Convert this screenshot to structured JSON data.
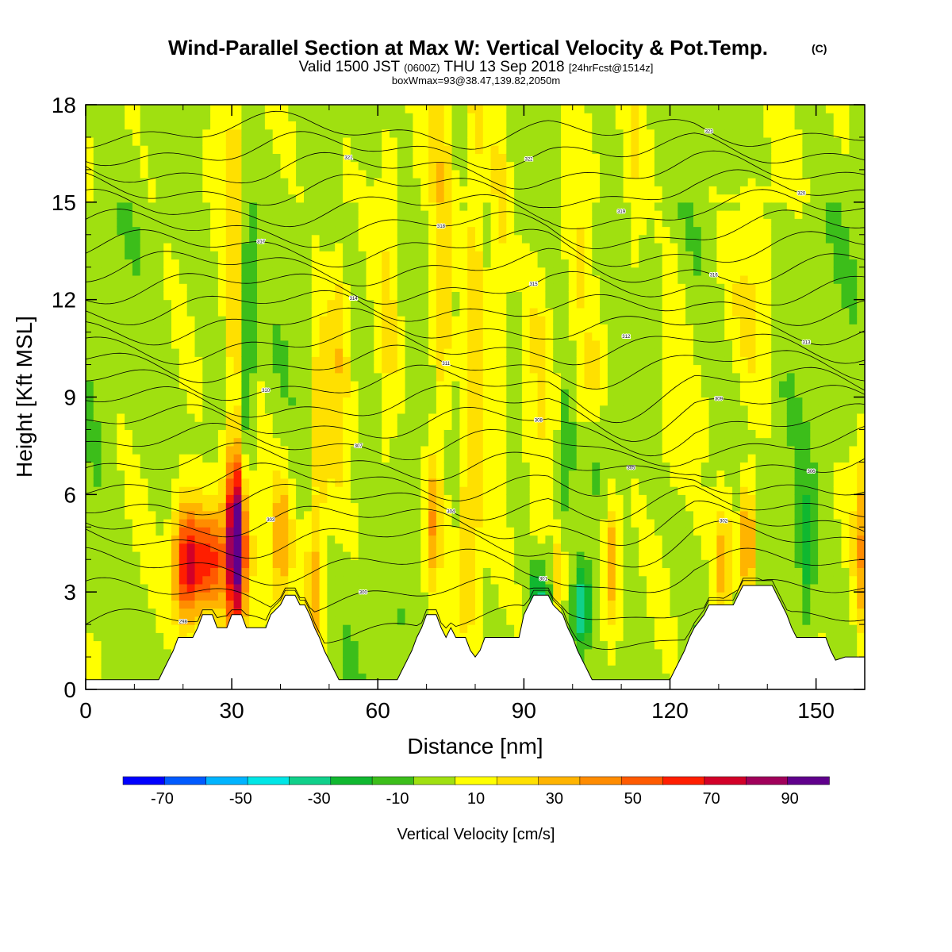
{
  "header": {
    "title": "Wind-Parallel Section at Max W: Vertical Velocity & Pot.Temp.",
    "copyright": "(C)",
    "valid_prefix": "Valid 1500 JST",
    "valid_utc": "(0600Z)",
    "valid_date": "THU 13 Sep 2018",
    "forecast": "[24hrFcst@1514z]",
    "box_info": "boxWmax=93@38.47,139.82,2050m"
  },
  "chart_data": {
    "type": "heatmap",
    "xlabel": "Distance [nm]",
    "ylabel": "Height [Kft MSL]",
    "xlim": [
      0,
      160
    ],
    "ylim": [
      0,
      18
    ],
    "x_ticks": [
      "0",
      "30",
      "60",
      "90",
      "120",
      "150"
    ],
    "y_ticks": [
      "0",
      "3",
      "6",
      "9",
      "12",
      "15",
      "18"
    ],
    "colorbar": {
      "label": "Vertical Velocity [cm/s]",
      "tick_labels": [
        "-70",
        "-50",
        "-30",
        "-10",
        "10",
        "30",
        "50",
        "70",
        "90"
      ],
      "bounds": [
        -80,
        100
      ],
      "colors": [
        "#0000ff",
        "#005aff",
        "#00b4ff",
        "#00e6e6",
        "#10d08a",
        "#10b830",
        "#3cbe1a",
        "#a0e010",
        "#ffff00",
        "#ffe000",
        "#ffb400",
        "#ff8c00",
        "#ff5a00",
        "#ff1e00",
        "#d20028",
        "#a0005a",
        "#60008c"
      ]
    },
    "terrain": [
      [
        0,
        0.3
      ],
      [
        8,
        0.3
      ],
      [
        15,
        0.3
      ],
      [
        16,
        0.6
      ],
      [
        17,
        0.9
      ],
      [
        18,
        1.2
      ],
      [
        19,
        1.6
      ],
      [
        22,
        1.6
      ],
      [
        23,
        1.9
      ],
      [
        24,
        2.3
      ],
      [
        26,
        2.3
      ],
      [
        27,
        1.9
      ],
      [
        29,
        1.9
      ],
      [
        30,
        2.3
      ],
      [
        32,
        2.3
      ],
      [
        33,
        1.9
      ],
      [
        37,
        1.9
      ],
      [
        38,
        2.3
      ],
      [
        40,
        2.6
      ],
      [
        41,
        2.9
      ],
      [
        43,
        2.9
      ],
      [
        44,
        2.6
      ],
      [
        45,
        2.6
      ],
      [
        46,
        2.3
      ],
      [
        47,
        1.9
      ],
      [
        48,
        1.6
      ],
      [
        49,
        1.2
      ],
      [
        50,
        0.9
      ],
      [
        51,
        0.6
      ],
      [
        52,
        0.3
      ],
      [
        64,
        0.3
      ],
      [
        65,
        0.6
      ],
      [
        66,
        0.9
      ],
      [
        67,
        1.2
      ],
      [
        68,
        1.6
      ],
      [
        69,
        1.9
      ],
      [
        70,
        2.3
      ],
      [
        72,
        2.3
      ],
      [
        73,
        1.9
      ],
      [
        74,
        1.6
      ],
      [
        75,
        1.9
      ],
      [
        76,
        1.6
      ],
      [
        78,
        1.6
      ],
      [
        79,
        1.2
      ],
      [
        80,
        1.0
      ],
      [
        81,
        1.2
      ],
      [
        82,
        1.6
      ],
      [
        89,
        1.6
      ],
      [
        90,
        2.3
      ],
      [
        91,
        2.6
      ],
      [
        92,
        2.9
      ],
      [
        95,
        2.9
      ],
      [
        96,
        2.6
      ],
      [
        98,
        2.3
      ],
      [
        99,
        1.9
      ],
      [
        100,
        1.6
      ],
      [
        101,
        1.2
      ],
      [
        102,
        0.9
      ],
      [
        103,
        0.6
      ],
      [
        104,
        0.3
      ],
      [
        120,
        0.3
      ],
      [
        121,
        0.6
      ],
      [
        122,
        0.9
      ],
      [
        123,
        1.2
      ],
      [
        124,
        1.6
      ],
      [
        125,
        1.9
      ],
      [
        127,
        2.3
      ],
      [
        128,
        2.6
      ],
      [
        133,
        2.6
      ],
      [
        134,
        2.9
      ],
      [
        135,
        3.2
      ],
      [
        141,
        3.2
      ],
      [
        142,
        2.9
      ],
      [
        143,
        2.6
      ],
      [
        144,
        2.3
      ],
      [
        145,
        1.9
      ],
      [
        146,
        1.6
      ],
      [
        152,
        1.6
      ],
      [
        153,
        1.2
      ],
      [
        154,
        0.9
      ],
      [
        156,
        1.0
      ],
      [
        160,
        1.0
      ]
    ],
    "updrafts": [
      [
        21,
        3.8,
        2.2,
        1.3,
        80
      ],
      [
        26,
        4.0,
        2.0,
        1.2,
        55
      ],
      [
        31,
        4.5,
        1.5,
        1.8,
        95
      ],
      [
        31,
        9.5,
        1.6,
        7.0,
        28
      ],
      [
        33,
        10.0,
        1.4,
        4.5,
        -28
      ],
      [
        35,
        5.5,
        1.5,
        2.5,
        22
      ],
      [
        40,
        4.5,
        1.5,
        1.5,
        35
      ],
      [
        47,
        3.0,
        1.2,
        1.5,
        25
      ],
      [
        48,
        8.0,
        1.4,
        3.5,
        20
      ],
      [
        52,
        10.5,
        1.5,
        3.0,
        22
      ],
      [
        62,
        11.0,
        1.5,
        4.0,
        14
      ],
      [
        71,
        5.0,
        1.0,
        1.5,
        30
      ],
      [
        73,
        12.0,
        1.6,
        5.5,
        24
      ],
      [
        80,
        11.5,
        1.6,
        6.0,
        25
      ],
      [
        78,
        4.5,
        1.2,
        2.0,
        22
      ],
      [
        85,
        13.0,
        1.5,
        4.0,
        18
      ],
      [
        93,
        8.0,
        1.6,
        4.0,
        14
      ],
      [
        93,
        2.8,
        1.5,
        0.8,
        -30
      ],
      [
        97,
        3.5,
        1.0,
        1.0,
        25
      ],
      [
        99,
        7.5,
        1.0,
        1.5,
        -22
      ],
      [
        102,
        2.5,
        1.2,
        0.9,
        -40
      ],
      [
        108,
        4.0,
        1.2,
        1.5,
        40
      ],
      [
        101,
        12.0,
        1.5,
        4.0,
        12
      ],
      [
        104,
        9.5,
        1.5,
        1.2,
        20
      ],
      [
        113,
        15.0,
        1.5,
        3.0,
        12
      ],
      [
        131,
        4.0,
        1.3,
        1.2,
        35
      ],
      [
        136,
        4.5,
        1.2,
        1.5,
        45
      ],
      [
        148,
        4.0,
        1.2,
        1.5,
        -25
      ],
      [
        160,
        4.5,
        1.5,
        2.0,
        35
      ],
      [
        137,
        12.0,
        3.0,
        2.0,
        14
      ],
      [
        120,
        10.0,
        2.0,
        3.0,
        12
      ]
    ],
    "isentropes": [
      [
        "298",
        2.0
      ],
      [
        "300",
        2.9
      ],
      [
        "301",
        3.8
      ],
      [
        "302",
        4.6
      ],
      [
        "303",
        5.2
      ],
      [
        "304",
        5.8
      ],
      [
        "305",
        6.4
      ],
      [
        "306",
        7.0
      ],
      [
        "307",
        7.6
      ],
      [
        "308",
        8.2
      ],
      [
        "309",
        8.8
      ],
      [
        "310",
        9.4
      ],
      [
        "311",
        10.0
      ],
      [
        "312",
        10.6
      ],
      [
        "313",
        11.2
      ],
      [
        "314",
        11.8
      ],
      [
        "315",
        12.4
      ],
      [
        "316",
        13.0
      ],
      [
        "317",
        13.6
      ],
      [
        "318",
        14.2
      ],
      [
        "319",
        14.8
      ],
      [
        "320",
        15.4
      ],
      [
        "321",
        16.0
      ],
      [
        "322",
        16.6
      ],
      [
        "323",
        17.2
      ]
    ]
  }
}
